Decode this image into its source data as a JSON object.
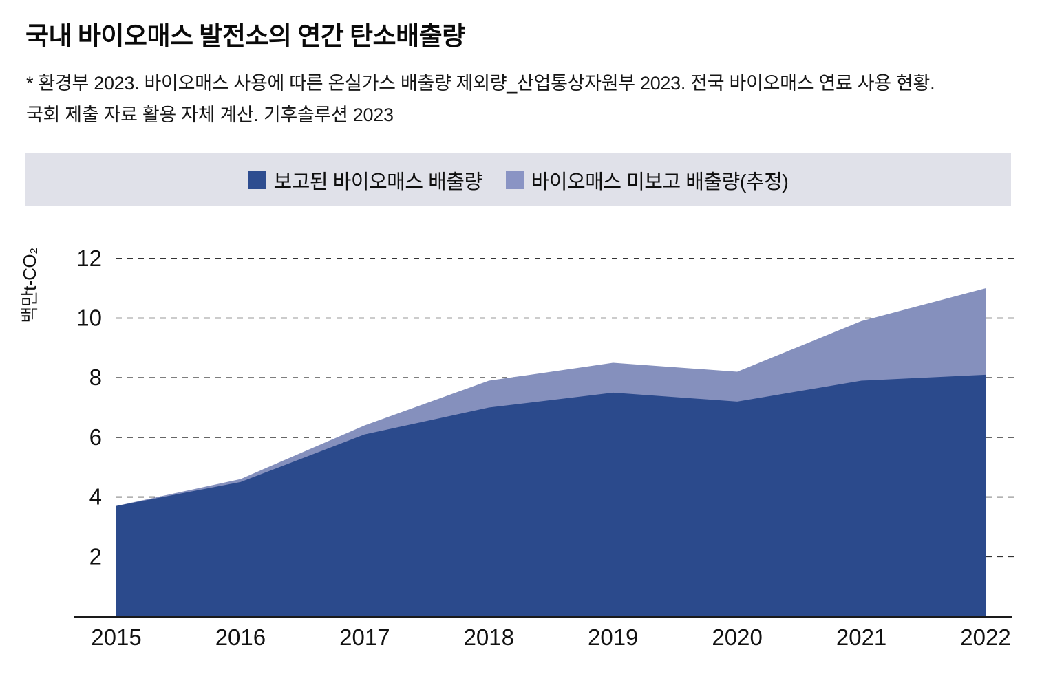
{
  "header": {
    "title": "국내 바이오매스 발전소의 연간 탄소배출량",
    "source_line1": "* 환경부 2023. 바이오매스 사용에 따른 온실가스 배출량 제외량_산업통상자원부 2023. 전국 바이오매스 연료 사용 현황.",
    "source_line2": "국회 제출 자료 활용 자체 계산. 기후솔루션 2023"
  },
  "legend": {
    "items": [
      {
        "label": "보고된 바이오매스 배출량",
        "color": "#2e4d90"
      },
      {
        "label": "바이오매스 미보고 배출량(추정)",
        "color": "#8a94c4"
      }
    ],
    "background": "#e0e1e9"
  },
  "chart_data": {
    "type": "area",
    "stacked": true,
    "categories": [
      "2015",
      "2016",
      "2017",
      "2018",
      "2019",
      "2020",
      "2021",
      "2022"
    ],
    "series": [
      {
        "name": "보고된 바이오매스 배출량",
        "color": "#2b4a8c",
        "values": [
          3.7,
          4.5,
          6.1,
          7.0,
          7.5,
          7.2,
          7.9,
          8.1
        ]
      },
      {
        "name": "바이오매스 미보고 배출량(추정)",
        "color": "#8590bd",
        "values": [
          0.0,
          0.1,
          0.3,
          0.9,
          1.0,
          1.0,
          2.0,
          2.9
        ]
      }
    ],
    "totals": [
      3.7,
      4.6,
      6.4,
      7.9,
      8.5,
      8.2,
      9.9,
      11.0
    ],
    "title": "국내 바이오매스 발전소의 연간 탄소배출량",
    "xlabel": "",
    "ylabel": "백만t-CO₂",
    "yticks": [
      2,
      4,
      6,
      8,
      10,
      12
    ],
    "ylim": [
      0,
      12.6
    ],
    "grid": "dashed horizontal",
    "legend_position": "top",
    "unit": "백만t-CO₂"
  }
}
